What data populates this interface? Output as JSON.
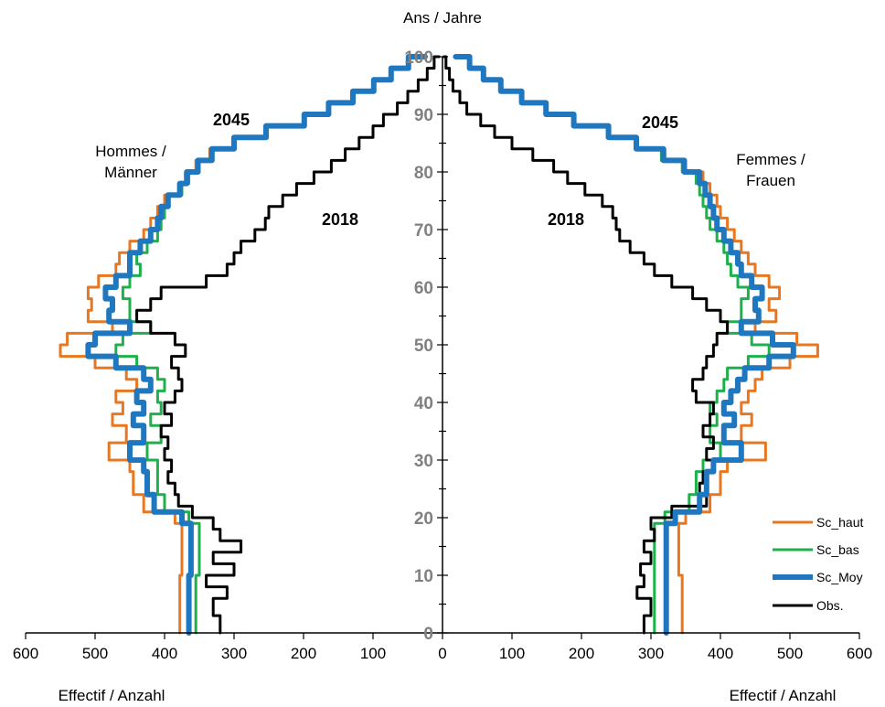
{
  "chart_data": {
    "type": "line",
    "title": "",
    "ylabel": "Ans / Jahre",
    "xlabel_left": "Effectif / Anzahl",
    "xlabel_right": "Effectif / Anzahl",
    "group_left": [
      "Hommes /",
      "Männer"
    ],
    "group_right": [
      "Femmes /",
      "Frauen"
    ],
    "xlim": [
      0,
      600
    ],
    "ylim": [
      0,
      100
    ],
    "x_ticks": [
      "600",
      "500",
      "400",
      "300",
      "200",
      "100",
      "0",
      "100",
      "200",
      "300",
      "400",
      "500",
      "600"
    ],
    "y_ticks": [
      "0",
      "10",
      "20",
      "30",
      "40",
      "50",
      "60",
      "70",
      "80",
      "90",
      "100"
    ],
    "annotations": [
      "2045",
      "2018",
      "2018",
      "2045"
    ],
    "legend_position": "bottom-right",
    "legend": [
      "Sc_haut",
      "Sc_bas",
      "Sc_Moy",
      "Obs."
    ],
    "colors": {
      "Sc_haut": "#e87722",
      "Sc_bas": "#1db04b",
      "Sc_Moy": "#1f77c0",
      "Obs": "#000000"
    },
    "series": [
      {
        "name": "Sc_haut",
        "men": {
          "ages": [
            0,
            10,
            19,
            21,
            24,
            28,
            30,
            33,
            36,
            38,
            40,
            42,
            44,
            46,
            48,
            50,
            52,
            54,
            56,
            58,
            60,
            62,
            64,
            66,
            68,
            70,
            72,
            74,
            76,
            78,
            80,
            82,
            84,
            86,
            88,
            90,
            92,
            94,
            96,
            98,
            100
          ],
          "values": [
            378,
            375,
            385,
            430,
            445,
            450,
            480,
            455,
            475,
            460,
            470,
            440,
            455,
            500,
            550,
            540,
            475,
            510,
            505,
            510,
            495,
            470,
            465,
            450,
            430,
            420,
            410,
            400,
            380,
            370,
            355,
            335,
            300,
            255,
            200,
            165,
            130,
            100,
            75,
            50,
            25
          ]
        },
        "women": {
          "ages": [
            0,
            10,
            19,
            21,
            24,
            28,
            30,
            33,
            36,
            38,
            40,
            42,
            44,
            46,
            48,
            50,
            52,
            54,
            56,
            58,
            60,
            62,
            64,
            66,
            68,
            70,
            72,
            74,
            76,
            78,
            80,
            82,
            84,
            86,
            88,
            90,
            92,
            94,
            96,
            98,
            100
          ],
          "values": [
            345,
            340,
            350,
            385,
            400,
            410,
            465,
            430,
            445,
            430,
            440,
            450,
            460,
            500,
            540,
            510,
            450,
            480,
            470,
            485,
            470,
            450,
            440,
            430,
            420,
            410,
            400,
            395,
            385,
            375,
            350,
            320,
            280,
            240,
            190,
            150,
            115,
            85,
            60,
            40,
            20
          ]
        }
      },
      {
        "name": "Sc_bas",
        "men": {
          "ages": [
            0,
            10,
            19,
            21,
            24,
            28,
            30,
            33,
            36,
            38,
            40,
            42,
            44,
            46,
            48,
            50,
            52,
            54,
            56,
            58,
            60,
            62,
            64,
            66,
            68,
            70,
            72,
            74,
            76,
            78,
            80,
            82,
            84,
            86,
            88,
            90,
            92,
            94,
            96,
            98,
            100
          ],
          "values": [
            355,
            350,
            365,
            400,
            410,
            410,
            425,
            405,
            420,
            405,
            410,
            400,
            410,
            440,
            470,
            460,
            420,
            450,
            450,
            460,
            450,
            435,
            440,
            425,
            410,
            405,
            400,
            395,
            375,
            365,
            350,
            330,
            298,
            252,
            198,
            163,
            128,
            98,
            73,
            48,
            24
          ]
        },
        "women": {
          "ages": [
            0,
            10,
            19,
            21,
            24,
            28,
            30,
            33,
            36,
            38,
            40,
            42,
            44,
            46,
            48,
            50,
            52,
            54,
            56,
            58,
            60,
            62,
            64,
            66,
            68,
            70,
            72,
            74,
            76,
            78,
            80,
            82,
            84,
            86,
            88,
            90,
            92,
            94,
            96,
            98,
            100
          ],
          "values": [
            305,
            305,
            320,
            355,
            365,
            375,
            400,
            385,
            395,
            385,
            395,
            405,
            410,
            440,
            470,
            445,
            410,
            430,
            430,
            440,
            425,
            415,
            410,
            405,
            395,
            385,
            380,
            375,
            370,
            365,
            345,
            315,
            277,
            237,
            188,
            148,
            113,
            83,
            58,
            38,
            18
          ]
        }
      },
      {
        "name": "Sc_Moy",
        "men": {
          "ages": [
            0,
            10,
            19,
            21,
            24,
            28,
            30,
            33,
            36,
            38,
            40,
            42,
            44,
            46,
            48,
            50,
            52,
            54,
            56,
            58,
            60,
            62,
            64,
            66,
            68,
            70,
            72,
            74,
            76,
            78,
            80,
            82,
            84,
            86,
            88,
            90,
            92,
            94,
            96,
            98,
            100
          ],
          "values": [
            365,
            362,
            375,
            415,
            425,
            430,
            450,
            430,
            445,
            430,
            440,
            420,
            430,
            470,
            510,
            500,
            450,
            480,
            475,
            485,
            470,
            450,
            450,
            435,
            420,
            410,
            405,
            395,
            378,
            368,
            352,
            332,
            300,
            254,
            199,
            164,
            129,
            99,
            74,
            49,
            25
          ]
        },
        "women": {
          "ages": [
            0,
            10,
            19,
            21,
            24,
            28,
            30,
            33,
            36,
            38,
            40,
            42,
            44,
            46,
            48,
            50,
            52,
            54,
            56,
            58,
            60,
            62,
            64,
            66,
            68,
            70,
            72,
            74,
            76,
            78,
            80,
            82,
            84,
            86,
            88,
            90,
            92,
            94,
            96,
            98,
            100
          ],
          "values": [
            322,
            322,
            335,
            370,
            380,
            390,
            430,
            405,
            420,
            405,
            415,
            425,
            435,
            470,
            505,
            475,
            430,
            455,
            450,
            460,
            445,
            430,
            425,
            415,
            405,
            395,
            390,
            385,
            378,
            370,
            348,
            318,
            279,
            239,
            189,
            149,
            114,
            84,
            59,
            39,
            19
          ]
        }
      },
      {
        "name": "Obs.",
        "men": {
          "ages": [
            0,
            3,
            6,
            8,
            10,
            12,
            14,
            16,
            18,
            20,
            22,
            24,
            26,
            28,
            30,
            32,
            34,
            36,
            38,
            40,
            42,
            44,
            46,
            48,
            50,
            52,
            54,
            56,
            58,
            60,
            62,
            64,
            66,
            68,
            70,
            72,
            74,
            76,
            78,
            80,
            82,
            84,
            86,
            88,
            90,
            92,
            94,
            96,
            98,
            100
          ],
          "values": [
            320,
            330,
            310,
            340,
            300,
            330,
            290,
            320,
            330,
            360,
            380,
            385,
            395,
            390,
            400,
            395,
            405,
            390,
            400,
            385,
            375,
            380,
            390,
            370,
            385,
            420,
            440,
            420,
            405,
            340,
            310,
            300,
            290,
            270,
            255,
            250,
            230,
            210,
            185,
            160,
            140,
            120,
            100,
            85,
            65,
            50,
            35,
            22,
            12,
            5
          ]
        },
        "women": {
          "ages": [
            0,
            3,
            6,
            8,
            10,
            12,
            14,
            16,
            18,
            20,
            22,
            24,
            26,
            28,
            30,
            32,
            34,
            36,
            38,
            40,
            42,
            44,
            46,
            48,
            50,
            52,
            54,
            56,
            58,
            60,
            62,
            64,
            66,
            68,
            70,
            72,
            74,
            76,
            78,
            80,
            82,
            84,
            86,
            88,
            90,
            92,
            94,
            96,
            98,
            100
          ],
          "values": [
            290,
            300,
            280,
            290,
            285,
            300,
            290,
            305,
            300,
            330,
            380,
            370,
            375,
            390,
            380,
            390,
            375,
            385,
            390,
            365,
            360,
            375,
            380,
            390,
            395,
            410,
            400,
            380,
            360,
            330,
            305,
            290,
            270,
            255,
            250,
            245,
            230,
            205,
            180,
            160,
            130,
            100,
            75,
            55,
            35,
            25,
            15,
            10,
            5,
            2
          ]
        }
      }
    ]
  }
}
